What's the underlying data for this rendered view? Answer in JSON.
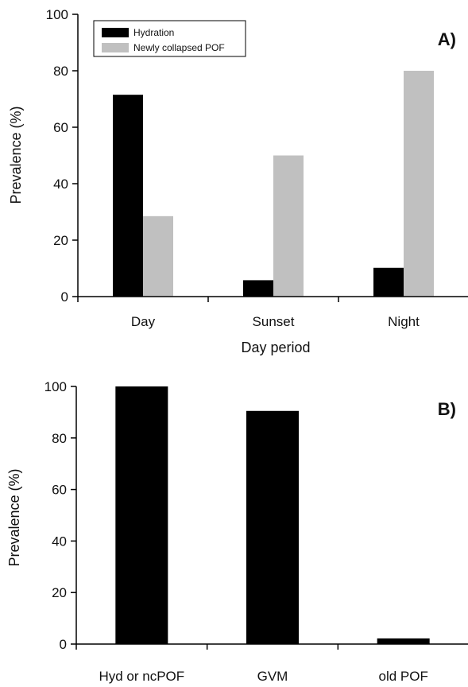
{
  "chart_data": [
    {
      "panel_label": "A)",
      "type": "bar",
      "categories": [
        "Day",
        "Sunset",
        "Night"
      ],
      "series": [
        {
          "name": "Hydration",
          "color": "#000000",
          "values": [
            71.5,
            5.8,
            10.2
          ]
        },
        {
          "name": "Newly collapsed POF",
          "color": "#c0c0c0",
          "values": [
            28.5,
            50,
            80
          ]
        }
      ],
      "xlabel": "Day period",
      "ylabel": "Prevalence (%)",
      "ylim": [
        0,
        100
      ],
      "yticks": [
        "0",
        "20",
        "40",
        "60",
        "80",
        "100"
      ],
      "legend": "top-left",
      "grid": false
    },
    {
      "panel_label": "B)",
      "type": "bar",
      "categories": [
        "Hyd or ncPOF",
        "GVM",
        "old POF"
      ],
      "series": [
        {
          "color": "#000000",
          "values": [
            100,
            90.5,
            2.2
          ]
        }
      ],
      "xlabel": "",
      "ylabel": "Prevalence (%)",
      "ylim": [
        0,
        100
      ],
      "yticks": [
        "0",
        "20",
        "40",
        "60",
        "80",
        "100"
      ],
      "grid": false
    }
  ]
}
